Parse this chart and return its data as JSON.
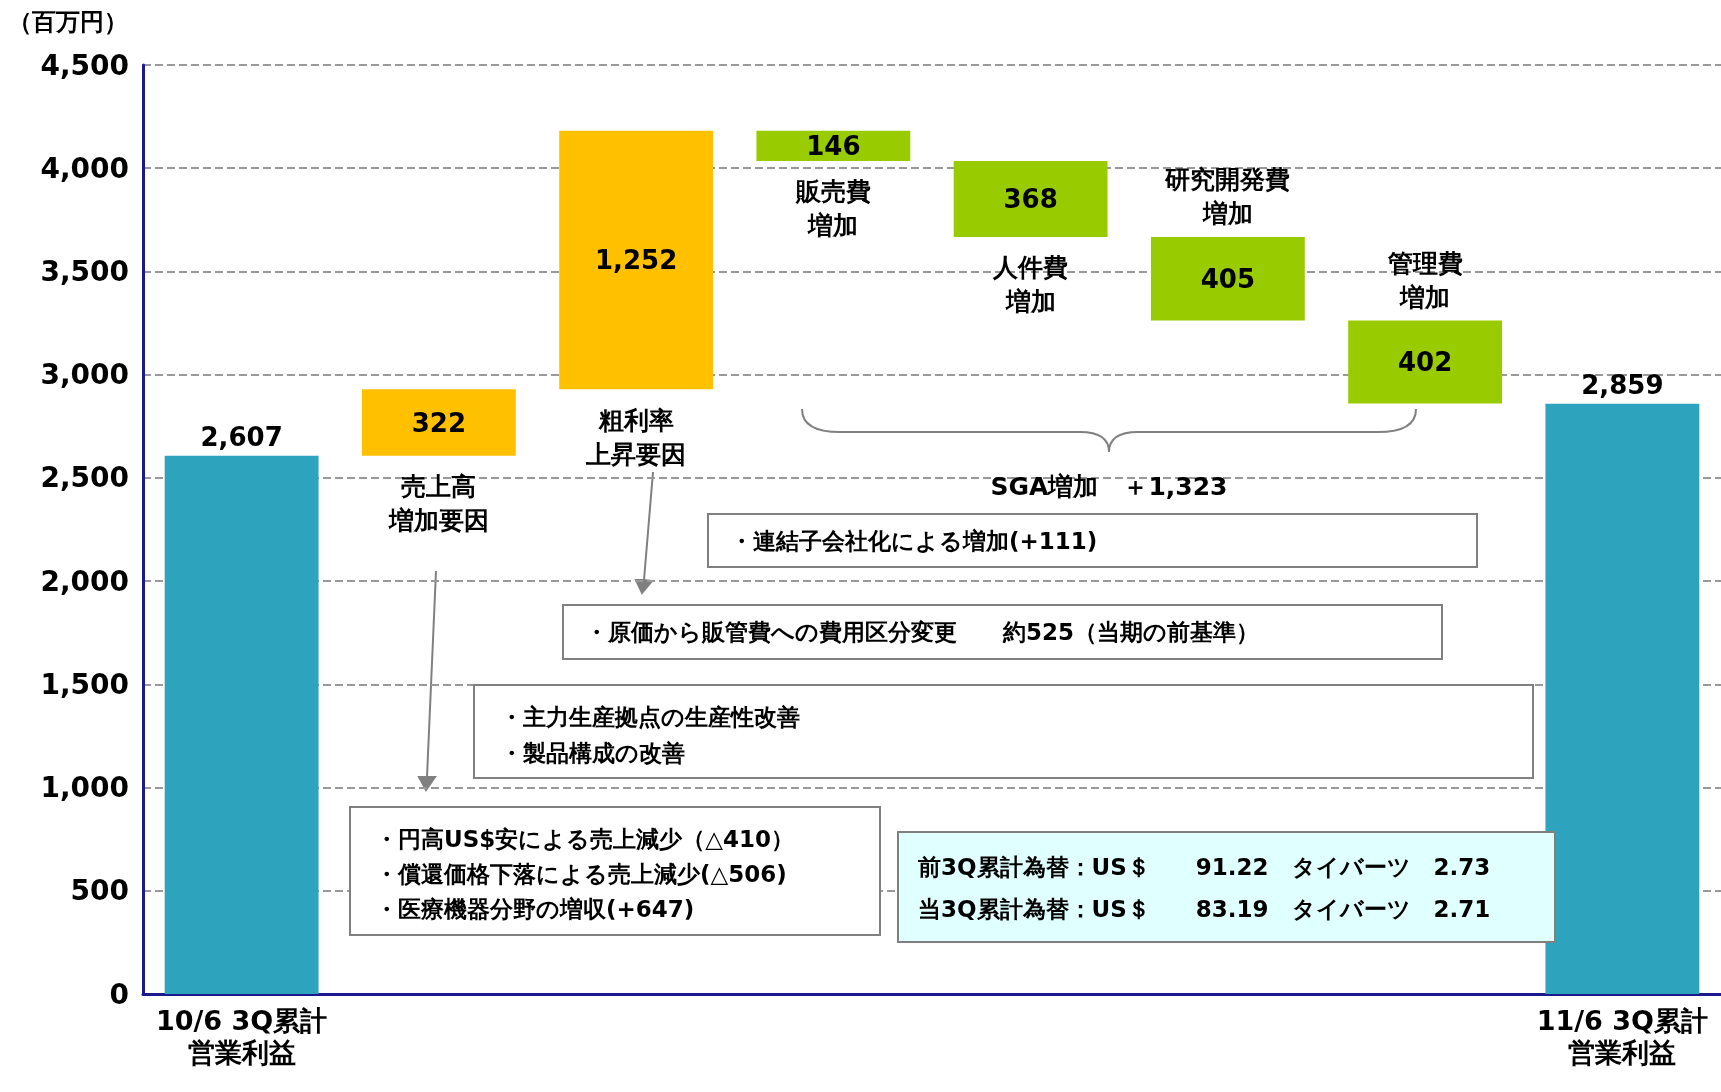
{
  "chart_data": {
    "type": "bar",
    "ylabel": "（百万円）",
    "categories": [
      "10/6 3Q累計営業利益",
      "売上高増加要因",
      "粗利率上昇要因",
      "販売費増加",
      "人件費増加",
      "研究開発費増加",
      "管理費増加",
      "11/6 3Q累計営業利益"
    ],
    "values": [
      2607,
      322,
      1252,
      146,
      368,
      405,
      402,
      2859
    ],
    "base": [
      0,
      2607,
      2929,
      4035,
      3667,
      3262,
      2860,
      0
    ],
    "colors": [
      "#2ea3be",
      "#ffc000",
      "#ffc000",
      "#99cc00",
      "#99cc00",
      "#99cc00",
      "#99cc00",
      "#2ea3be"
    ],
    "value_labels": [
      "2,607",
      "322",
      "1,252",
      "146",
      "368",
      "405",
      "402",
      "2,859"
    ],
    "ylim": [
      0,
      4500
    ],
    "yticks": [
      0,
      500,
      {
        "value": 1000,
        "label": "1,000"
      },
      {
        "value": 1500,
        "label": "1,500"
      },
      {
        "value": 2000,
        "label": "2,000"
      },
      {
        "value": 2500,
        "label": "2,500"
      },
      {
        "value": 3000,
        "label": "3,000"
      },
      {
        "value": 3500,
        "label": "3,500"
      },
      {
        "value": 4000,
        "label": "4,000"
      },
      {
        "value": 4500,
        "label": "4,500"
      }
    ],
    "grid": "y",
    "annotations": [
      "SGA増加　＋1,323",
      "・連結子会社化による増加(+111)",
      "・原価から販管費への費用区分変更　　約525（当期の前基準）",
      "・主力生産拠点の生産性改善",
      "・製品構成の改善",
      "・円高US$安による売上減少（△410）",
      "・償還価格下落による売上減少(△506)",
      "・医療機器分野の増収(+647)",
      "前3Q累計為替：US＄　　91.22　タイバーツ　2.73",
      "当3Q累計為替：US＄　　83.19　タイバーツ　2.71"
    ]
  }
}
